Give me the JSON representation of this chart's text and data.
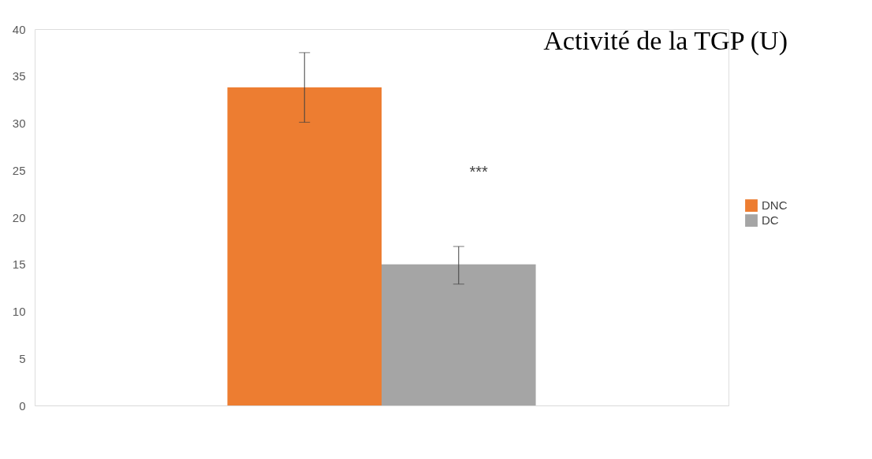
{
  "chart_data": {
    "type": "bar",
    "title": "Activité de la TGP (U)",
    "categories": [
      null
    ],
    "series": [
      {
        "name": "DNC",
        "color": "#ed7d31",
        "values": [
          33.8
        ],
        "errors": [
          [
            30.1,
            37.5
          ]
        ]
      },
      {
        "name": "DC",
        "color": "#a5a5a5",
        "values": [
          15.0
        ],
        "errors": [
          [
            12.9,
            16.9
          ]
        ]
      }
    ],
    "ylim": [
      0,
      40
    ],
    "yticks": [
      0,
      5,
      10,
      15,
      20,
      25,
      30,
      35,
      40
    ],
    "annotations": [
      "***"
    ],
    "grid": false,
    "legend": "right"
  }
}
